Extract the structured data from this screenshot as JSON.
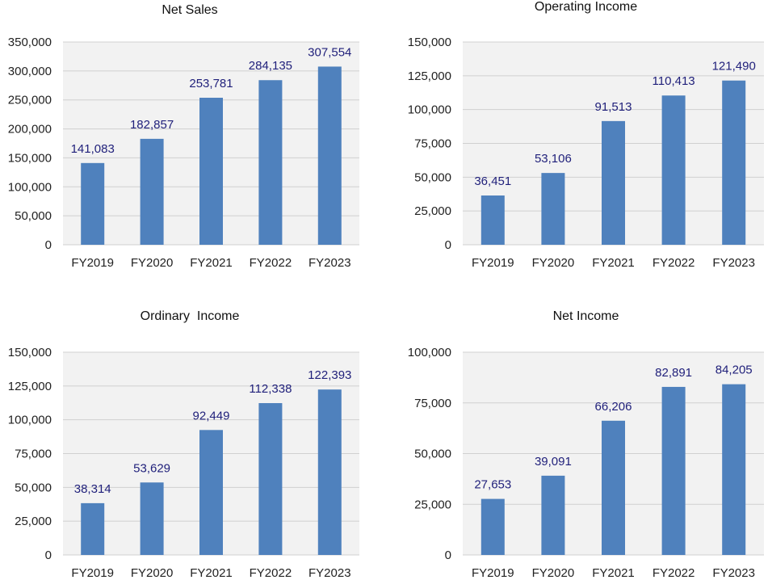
{
  "colors": {
    "bar": "#4f81bd",
    "plot_bg": "#f2f2f2",
    "grid": "#d0d0d0",
    "label": "#1f1f7a",
    "axis_text": "#222222"
  },
  "chart_data": [
    {
      "type": "bar",
      "title": "Net Sales",
      "categories": [
        "FY2019",
        "FY2020",
        "FY2021",
        "FY2022",
        "FY2023"
      ],
      "values": [
        141083,
        182857,
        253781,
        284135,
        307554
      ],
      "data_labels": [
        "141,083",
        "182,857",
        "253,781",
        "284,135",
        "307,554"
      ],
      "ylim": [
        0,
        350000
      ],
      "yticks": [
        "0",
        "50,000",
        "100,000",
        "150,000",
        "200,000",
        "250,000",
        "300,000",
        "350,000"
      ],
      "grid": true
    },
    {
      "type": "bar",
      "title": "Operating Income",
      "categories": [
        "FY2019",
        "FY2020",
        "FY2021",
        "FY2022",
        "FY2023"
      ],
      "values": [
        36451,
        53106,
        91513,
        110413,
        121490
      ],
      "data_labels": [
        "36,451",
        "53,106",
        "91,513",
        "110,413",
        "121,490"
      ],
      "ylim": [
        0,
        150000
      ],
      "yticks": [
        "0",
        "25,000",
        "50,000",
        "75,000",
        "100,000",
        "125,000",
        "150,000"
      ],
      "grid": true
    },
    {
      "type": "bar",
      "title": "Ordinary  Income",
      "categories": [
        "FY2019",
        "FY2020",
        "FY2021",
        "FY2022",
        "FY2023"
      ],
      "values": [
        38314,
        53629,
        92449,
        112338,
        122393
      ],
      "data_labels": [
        "38,314",
        "53,629",
        "92,449",
        "112,338",
        "122,393"
      ],
      "ylim": [
        0,
        150000
      ],
      "yticks": [
        "0",
        "25,000",
        "50,000",
        "75,000",
        "100,000",
        "125,000",
        "150,000"
      ],
      "grid": true
    },
    {
      "type": "bar",
      "title": "Net Income",
      "categories": [
        "FY2019",
        "FY2020",
        "FY2021",
        "FY2022",
        "FY2023"
      ],
      "values": [
        27653,
        39091,
        66206,
        82891,
        84205
      ],
      "data_labels": [
        "27,653",
        "39,091",
        "66,206",
        "82,891",
        "84,205"
      ],
      "ylim": [
        0,
        100000
      ],
      "yticks": [
        "0",
        "25,000",
        "50,000",
        "75,000",
        "100,000"
      ],
      "grid": true
    }
  ]
}
